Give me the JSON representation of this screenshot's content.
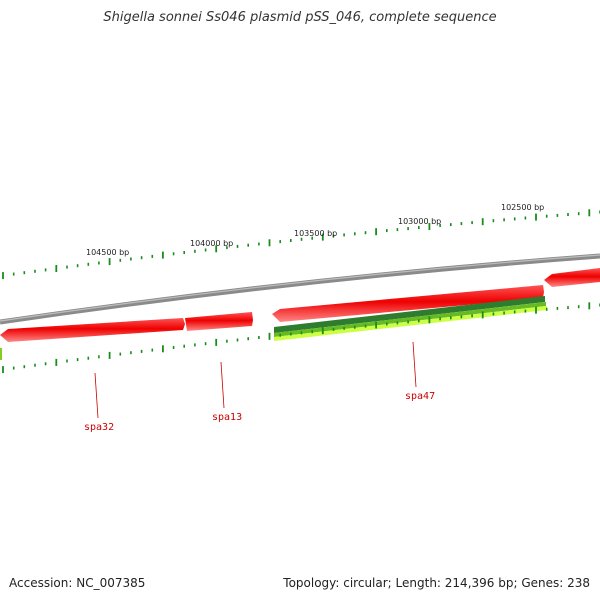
{
  "title": "Shigella sonnei Ss046 plasmid pSS_046, complete sequence",
  "footer": {
    "accession": "Accession: NC_007385",
    "topology": "Topology: circular; Length: 214,396 bp; Genes: 238"
  },
  "ticks": [
    {
      "label": "104500 bp"
    },
    {
      "label": "104000 bp"
    },
    {
      "label": "103500 bp"
    },
    {
      "label": "103000 bp"
    },
    {
      "label": "102500 bp"
    }
  ],
  "genes": [
    {
      "label": "spa32"
    },
    {
      "label": "spa13"
    },
    {
      "label": "spa47"
    }
  ],
  "colors": {
    "backbone": "#808080",
    "cds_forward": "#ee0000",
    "cds_forward_light": "#ff7777",
    "gene_dark_green": "#2e7d2e",
    "gene_green": "#66bb22",
    "gene_light_green": "#ccff44",
    "tick_green": "#1a8c1a",
    "label_red": "#cc0000"
  }
}
